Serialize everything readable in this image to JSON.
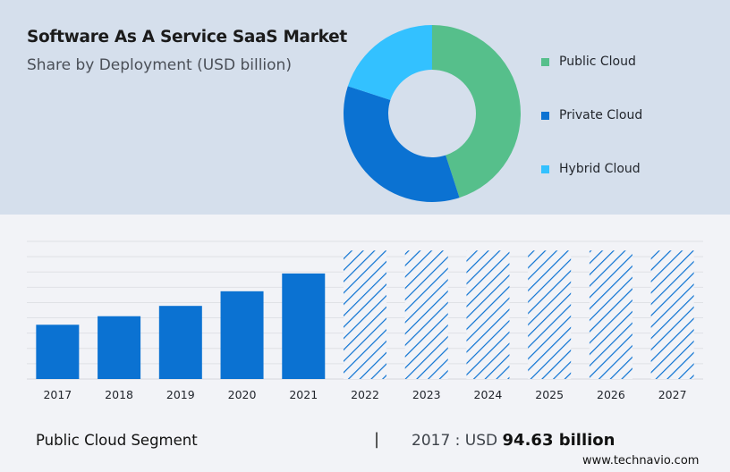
{
  "header": {
    "title": "Software As A Service SaaS Market",
    "subtitle": "Share by Deployment (USD billion)"
  },
  "chart_data": [
    {
      "type": "pie",
      "style": "donut",
      "legend_position": "right",
      "labels": [
        "Public Cloud",
        "Private Cloud",
        "Hybrid Cloud"
      ],
      "values": [
        45,
        35,
        20
      ],
      "colors": [
        "#56bf8b",
        "#0b72d2",
        "#33c1ff"
      ]
    },
    {
      "type": "bar",
      "categories": [
        "2017",
        "2018",
        "2019",
        "2020",
        "2021",
        "2022",
        "2023",
        "2024",
        "2025",
        "2026",
        "2027"
      ],
      "values": [
        94.63,
        109.5,
        127.5,
        153.0,
        184.0,
        224.0,
        224.0,
        224.0,
        224.0,
        224.0,
        224.0
      ],
      "forecast_from": "2022",
      "forecast_style": "hatched",
      "ylim": [
        0,
        240
      ],
      "grid": true,
      "bar_color": "#0b72d2"
    }
  ],
  "footer": {
    "segment_label": "Public Cloud Segment",
    "separator": "|",
    "value_prefix": "2017 : USD",
    "value": "94.63 billion",
    "source": "www.technavio.com"
  }
}
